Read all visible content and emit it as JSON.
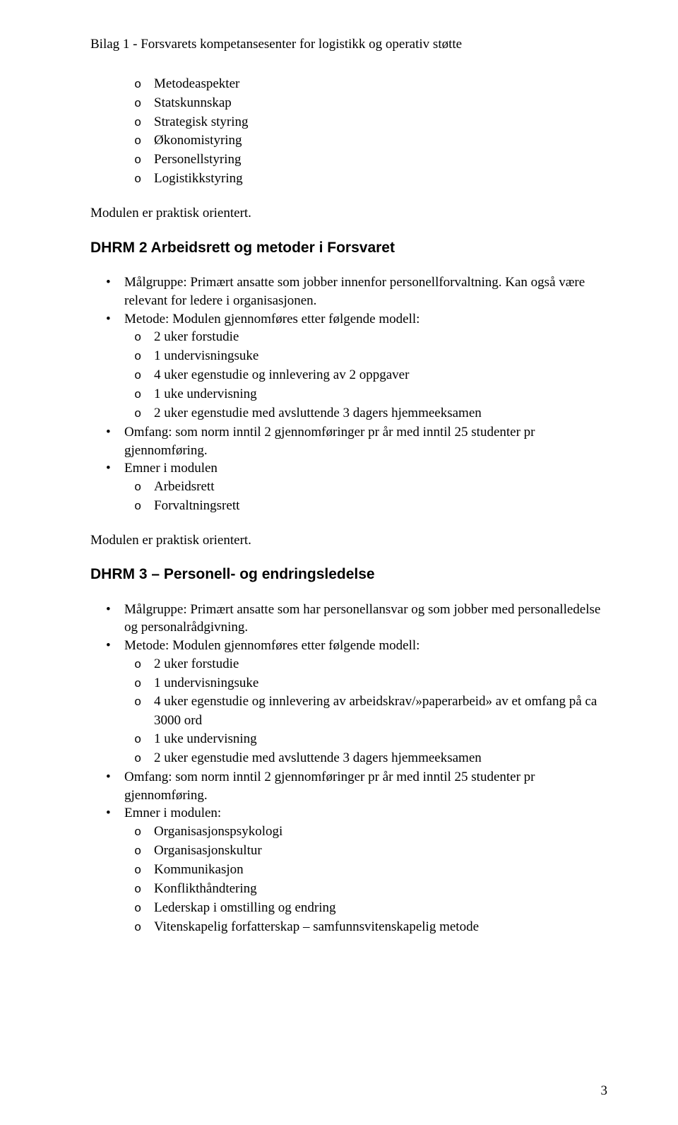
{
  "header": "Bilag 1 - Forsvarets kompetansesenter for logistikk og operativ støtte",
  "topList": [
    "Metodeaspekter",
    "Statskunnskap",
    "Strategisk styring",
    "Økonomistyring",
    "Personellstyring",
    "Logistikkstyring"
  ],
  "para1": "Modulen er praktisk orientert.",
  "section2": {
    "title": "DHRM 2 Arbeidsrett og metoder i Forsvaret",
    "items": [
      {
        "text": "Målgruppe: Primært ansatte som jobber innenfor personellforvaltning. Kan også være relevant for ledere i organisasjonen."
      },
      {
        "text": "Metode: Modulen gjennomføres etter følgende modell:",
        "sub": [
          "2 uker forstudie",
          "1 undervisningsuke",
          "4 uker egenstudie og innlevering av 2 oppgaver",
          "1 uke undervisning",
          "2 uker egenstudie med avsluttende 3 dagers hjemmeeksamen"
        ]
      },
      {
        "text": "Omfang: som norm inntil 2 gjennomføringer pr år med inntil 25 studenter pr gjennomføring."
      },
      {
        "text": "Emner i modulen",
        "sub": [
          "Arbeidsrett",
          "Forvaltningsrett"
        ]
      }
    ]
  },
  "para2": "Modulen er praktisk orientert.",
  "section3": {
    "title": "DHRM 3 – Personell- og endringsledelse",
    "items": [
      {
        "text": "Målgruppe: Primært ansatte som har personellansvar og som jobber med personalledelse og personalrådgivning."
      },
      {
        "text": "Metode: Modulen gjennomføres etter følgende modell:",
        "sub": [
          "2 uker forstudie",
          "1 undervisningsuke",
          "4 uker egenstudie og innlevering av arbeidskrav/»paperarbeid» av et omfang på ca 3000 ord",
          "1 uke undervisning",
          "2 uker egenstudie med avsluttende 3 dagers hjemmeeksamen"
        ]
      },
      {
        "text": "Omfang: som norm inntil 2 gjennomføringer pr år med inntil 25 studenter pr gjennomføring."
      },
      {
        "text": "Emner i modulen:",
        "sub": [
          "Organisasjonspsykologi",
          "Organisasjonskultur",
          "Kommunikasjon",
          "Konflikthåndtering",
          "Lederskap i omstilling og endring",
          "Vitenskapelig forfatterskap – samfunnsvitenskapelig metode"
        ]
      }
    ]
  },
  "pageNumber": "3"
}
